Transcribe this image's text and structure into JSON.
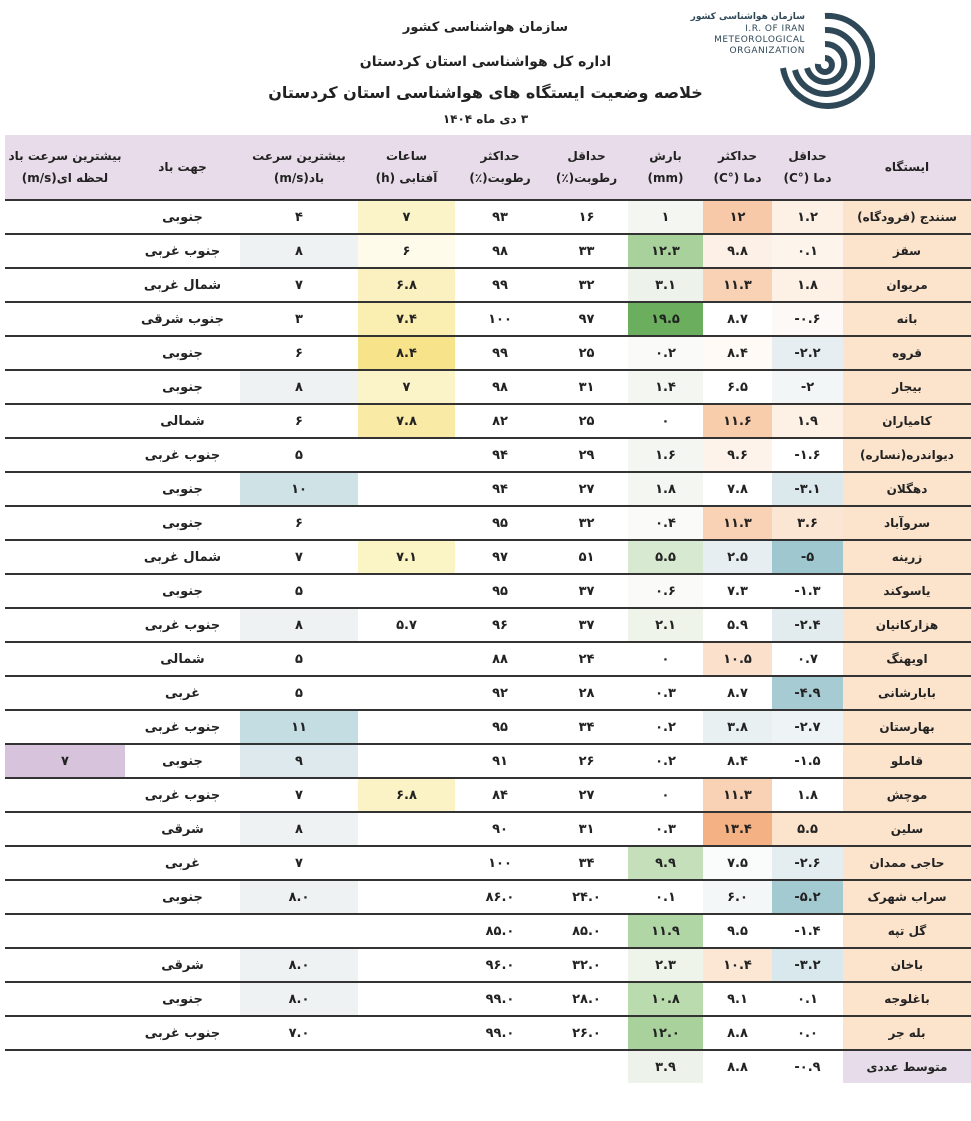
{
  "header": {
    "org": "سازمان هواشناسی کشور",
    "dept": "اداره کل هواشناسی استان کردستان",
    "title": "خلاصه وضعیت ایستگاه های هواشناسی استان کردستان",
    "date": "۳ دی ماه ۱۴۰۴"
  },
  "logo": {
    "fa": "سازمان هواشناسی کشور",
    "en1": "I.R. OF IRAN",
    "en2": "METEOROLOGICAL",
    "en3": "ORGANIZATION",
    "color": "#2f4858"
  },
  "columns": [
    [
      "ایستگاه",
      ""
    ],
    [
      "حداقل",
      "دما (°C)"
    ],
    [
      "حداکثر",
      "دما (°C)"
    ],
    [
      "بارش",
      "(mm)"
    ],
    [
      "حداقل",
      "رطوبت(٪)"
    ],
    [
      "حداکثر",
      "رطوبت(٪)"
    ],
    [
      "ساعات",
      "آفتابی (h)"
    ],
    [
      "بیشترین سرعت",
      "باد(m/s)"
    ],
    [
      "جهت باد",
      ""
    ],
    [
      "بیشترین سرعت باد",
      "لحظه ای(m/s)"
    ]
  ],
  "rows": [
    {
      "v": [
        "سنندج (فرودگاه)",
        "۱.۲",
        "۱۲",
        "۱",
        "۱۶",
        "۹۳",
        "۷",
        "۴",
        "جنوبی",
        ""
      ],
      "bg": [
        "#fbe3cc",
        "#fdf0e4",
        "#f8c9a8",
        "#f4f6f2",
        "",
        "",
        "#fbf4c8",
        "",
        "",
        ""
      ]
    },
    {
      "v": [
        "سقز",
        "۰.۱",
        "۹.۸",
        "۱۲.۳",
        "۳۳",
        "۹۸",
        "۶",
        "۸",
        "جنوب غربی",
        ""
      ],
      "bg": [
        "#fbe3cc",
        "#fdf5ec",
        "#fdf0e6",
        "#a8d19c",
        "",
        "",
        "#fffbea",
        "#eef2f3",
        "",
        ""
      ]
    },
    {
      "v": [
        "مریوان",
        "۱.۸",
        "۱۱.۳",
        "۳.۱",
        "۳۲",
        "۹۹",
        "۶.۸",
        "۷",
        "شمال غربی",
        ""
      ],
      "bg": [
        "#fbe3cc",
        "#fdf0e4",
        "#f9d2b5",
        "#edf3ea",
        "",
        "",
        "#fbf0c0",
        "",
        "",
        ""
      ]
    },
    {
      "v": [
        "بانه",
        "-۰.۶",
        "۸.۷",
        "۱۹.۵",
        "۹۷",
        "۱۰۰",
        "۷.۴",
        "۳",
        "جنوب شرقی",
        ""
      ],
      "bg": [
        "#fbe3cc",
        "#fdf9f6",
        "",
        "#6aae5e",
        "",
        "",
        "#faeeb0",
        "",
        "",
        ""
      ]
    },
    {
      "v": [
        "قروه",
        "-۲.۲",
        "۸.۴",
        "۰.۲",
        "۲۵",
        "۹۹",
        "۸.۴",
        "۶",
        "جنوبی",
        ""
      ],
      "bg": [
        "#fbe3cc",
        "#e6eef1",
        "#fffaf5",
        "#fafaf8",
        "",
        "",
        "#f7e48a",
        "",
        "",
        ""
      ]
    },
    {
      "v": [
        "بیجار",
        "-۲",
        "۶.۵",
        "۱.۴",
        "۳۱",
        "۹۸",
        "۷",
        "۸",
        "جنوبی",
        ""
      ],
      "bg": [
        "#fbe3cc",
        "#f3f6f7",
        "",
        "#f4f6f2",
        "",
        "",
        "#fbf4c8",
        "#eef2f3",
        "",
        ""
      ]
    },
    {
      "v": [
        "کامیاران",
        "۱.۹",
        "۱۱.۶",
        "۰",
        "۲۵",
        "۸۲",
        "۷.۸",
        "۶",
        "شمالی",
        ""
      ],
      "bg": [
        "#fbe3cc",
        "#fdf0e4",
        "#f8cdab",
        "",
        "",
        "",
        "#f9eaa5",
        "",
        "",
        ""
      ]
    },
    {
      "v": [
        "دیواندره(نساره)",
        "-۱.۶",
        "۹.۶",
        "۱.۶",
        "۲۹",
        "۹۴",
        "",
        "۵",
        "جنوب غربی",
        ""
      ],
      "bg": [
        "#fbe3cc",
        "",
        "#fdf3ea",
        "#f4f6f2",
        "",
        "",
        "",
        "",
        "",
        ""
      ]
    },
    {
      "v": [
        "دهگلان",
        "-۳.۱",
        "۷.۸",
        "۱.۸",
        "۲۷",
        "۹۴",
        "",
        "۱۰",
        "جنوبی",
        ""
      ],
      "bg": [
        "#fbe3cc",
        "#dbe8ec",
        "",
        "#f4f6f2",
        "",
        "",
        "",
        "#cfe2e6",
        "",
        ""
      ]
    },
    {
      "v": [
        "سروآباد",
        "۳.۶",
        "۱۱.۳",
        "۰.۴",
        "۳۲",
        "۹۵",
        "",
        "۶",
        "جنوبی",
        ""
      ],
      "bg": [
        "#fbe3cc",
        "#fbe6d4",
        "#f9d2b5",
        "#fafaf8",
        "",
        "",
        "",
        "",
        "",
        ""
      ]
    },
    {
      "v": [
        "زرینه",
        "-۵",
        "۲.۵",
        "۵.۵",
        "۵۱",
        "۹۷",
        "۷.۱",
        "۷",
        "شمال غربی",
        ""
      ],
      "bg": [
        "#fbe3cc",
        "#9fc7cf",
        "#e6eef1",
        "#d8e9d2",
        "",
        "",
        "#fbf4c4",
        "",
        "",
        ""
      ]
    },
    {
      "v": [
        "یاسوکند",
        "-۱.۳",
        "۷.۳",
        "۰.۶",
        "۳۷",
        "۹۵",
        "",
        "۵",
        "جنوبی",
        ""
      ],
      "bg": [
        "#fbe3cc",
        "",
        "",
        "#fafaf8",
        "",
        "",
        "",
        "",
        "",
        ""
      ]
    },
    {
      "v": [
        "هزارکانیان",
        "-۲.۴",
        "۵.۹",
        "۲.۱",
        "۳۷",
        "۹۶",
        "۵.۷",
        "۸",
        "جنوب غربی",
        ""
      ],
      "bg": [
        "#fbe3cc",
        "#e2ecef",
        "",
        "#eef4ea",
        "",
        "",
        "",
        "#eef2f3",
        "",
        ""
      ]
    },
    {
      "v": [
        "اویهنگ",
        "۰.۷",
        "۱۰.۵",
        "۰",
        "۲۴",
        "۸۸",
        "",
        "۵",
        "شمالی",
        ""
      ],
      "bg": [
        "#fbe3cc",
        "",
        "#fbe1cc",
        "",
        "",
        "",
        "",
        "",
        "",
        ""
      ]
    },
    {
      "v": [
        "بابارشانی",
        "-۴.۹",
        "۸.۷",
        "۰.۳",
        "۲۸",
        "۹۲",
        "",
        "۵",
        "غربی",
        ""
      ],
      "bg": [
        "#fbe3cc",
        "#a7cbd3",
        "",
        "",
        "",
        "",
        "",
        "",
        "",
        ""
      ]
    },
    {
      "v": [
        "بهارستان",
        "-۲.۷",
        "۳.۸",
        "۰.۲",
        "۳۴",
        "۹۵",
        "",
        "۱۱",
        "جنوب غربی",
        ""
      ],
      "bg": [
        "#fbe3cc",
        "#eef3f5",
        "#e8f0f2",
        "",
        "",
        "",
        "",
        "#c3dde2",
        "",
        ""
      ]
    },
    {
      "v": [
        "قاملو",
        "-۱.۵",
        "۸.۴",
        "۰.۲",
        "۲۶",
        "۹۱",
        "",
        "۹",
        "جنوبی",
        "۷"
      ],
      "bg": [
        "#fbe3cc",
        "",
        "",
        "",
        "",
        "",
        "",
        "#dde9ec",
        "",
        "#d7c3dc"
      ]
    },
    {
      "v": [
        "موچش",
        "۱.۸",
        "۱۱.۳",
        "۰",
        "۲۷",
        "۸۴",
        "۶.۸",
        "۷",
        "جنوب غربی",
        ""
      ],
      "bg": [
        "#fbe3cc",
        "",
        "#f9d2b5",
        "",
        "",
        "",
        "#fbf3c6",
        "",
        "",
        ""
      ]
    },
    {
      "v": [
        "سلین",
        "۵.۵",
        "۱۳.۴",
        "۰.۳",
        "۳۱",
        "۹۰",
        "",
        "۸",
        "شرقی",
        ""
      ],
      "bg": [
        "#fbe3cc",
        "#fbe3cc",
        "#f4b183",
        "",
        "",
        "",
        "",
        "#eef2f3",
        "",
        ""
      ]
    },
    {
      "v": [
        "حاجی ممدان",
        "-۲.۶",
        "۷.۵",
        "۹.۹",
        "۳۴",
        "۱۰۰",
        "",
        "۷",
        "غربی",
        ""
      ],
      "bg": [
        "#fbe3cc",
        "#e4edf0",
        "#fafbfb",
        "#c4dfba",
        "",
        "",
        "",
        "",
        "",
        ""
      ]
    },
    {
      "v": [
        "سراب شهرک",
        "-۵.۲",
        "۶.۰",
        "۰.۱",
        "۲۴.۰",
        "۸۶.۰",
        "",
        "۸.۰",
        "جنوبی",
        ""
      ],
      "bg": [
        "#fbe3cc",
        "#a3c9d1",
        "#f4f7f8",
        "",
        "",
        "",
        "",
        "#eef2f3",
        "",
        ""
      ]
    },
    {
      "v": [
        "گل تپه",
        "-۱.۴",
        "۹.۵",
        "۱۱.۹",
        "۸۵.۰",
        "۸۵.۰",
        "",
        "",
        "",
        ""
      ],
      "bg": [
        "#fbe3cc",
        "",
        "",
        "#b0d6a5",
        "",
        "",
        "",
        "",
        "",
        ""
      ]
    },
    {
      "v": [
        "باخان",
        "-۳.۲",
        "۱۰.۴",
        "۲.۳",
        "۳۲.۰",
        "۹۶.۰",
        "",
        "۸.۰",
        "شرقی",
        ""
      ],
      "bg": [
        "#fbe3cc",
        "#d9e8ec",
        "#fce6d4",
        "#eef4ea",
        "",
        "",
        "",
        "#eef2f3",
        "",
        ""
      ]
    },
    {
      "v": [
        "باغلوجه",
        "۰.۱",
        "۹.۱",
        "۱۰.۸",
        "۲۸.۰",
        "۹۹.۰",
        "",
        "۸.۰",
        "جنوبی",
        ""
      ],
      "bg": [
        "#fbe3cc",
        "",
        "",
        "#b9dbae",
        "",
        "",
        "",
        "#eef2f3",
        "",
        ""
      ]
    },
    {
      "v": [
        "بله جر",
        "۰.۰",
        "۸.۸",
        "۱۲.۰",
        "۲۶.۰",
        "۹۹.۰",
        "",
        "۷.۰",
        "جنوب غربی",
        ""
      ],
      "bg": [
        "#fbe3cc",
        "",
        "",
        "#a8d19c",
        "",
        "",
        "",
        "",
        "",
        ""
      ]
    },
    {
      "v": [
        "متوسط عددی",
        "-۰.۹",
        "۸.۸",
        "۳.۹",
        "",
        "",
        "",
        "",
        "",
        ""
      ],
      "bg": [
        "#e6dcea",
        "",
        "",
        "#edf3ea",
        "",
        "",
        "",
        "",
        "",
        ""
      ]
    }
  ]
}
